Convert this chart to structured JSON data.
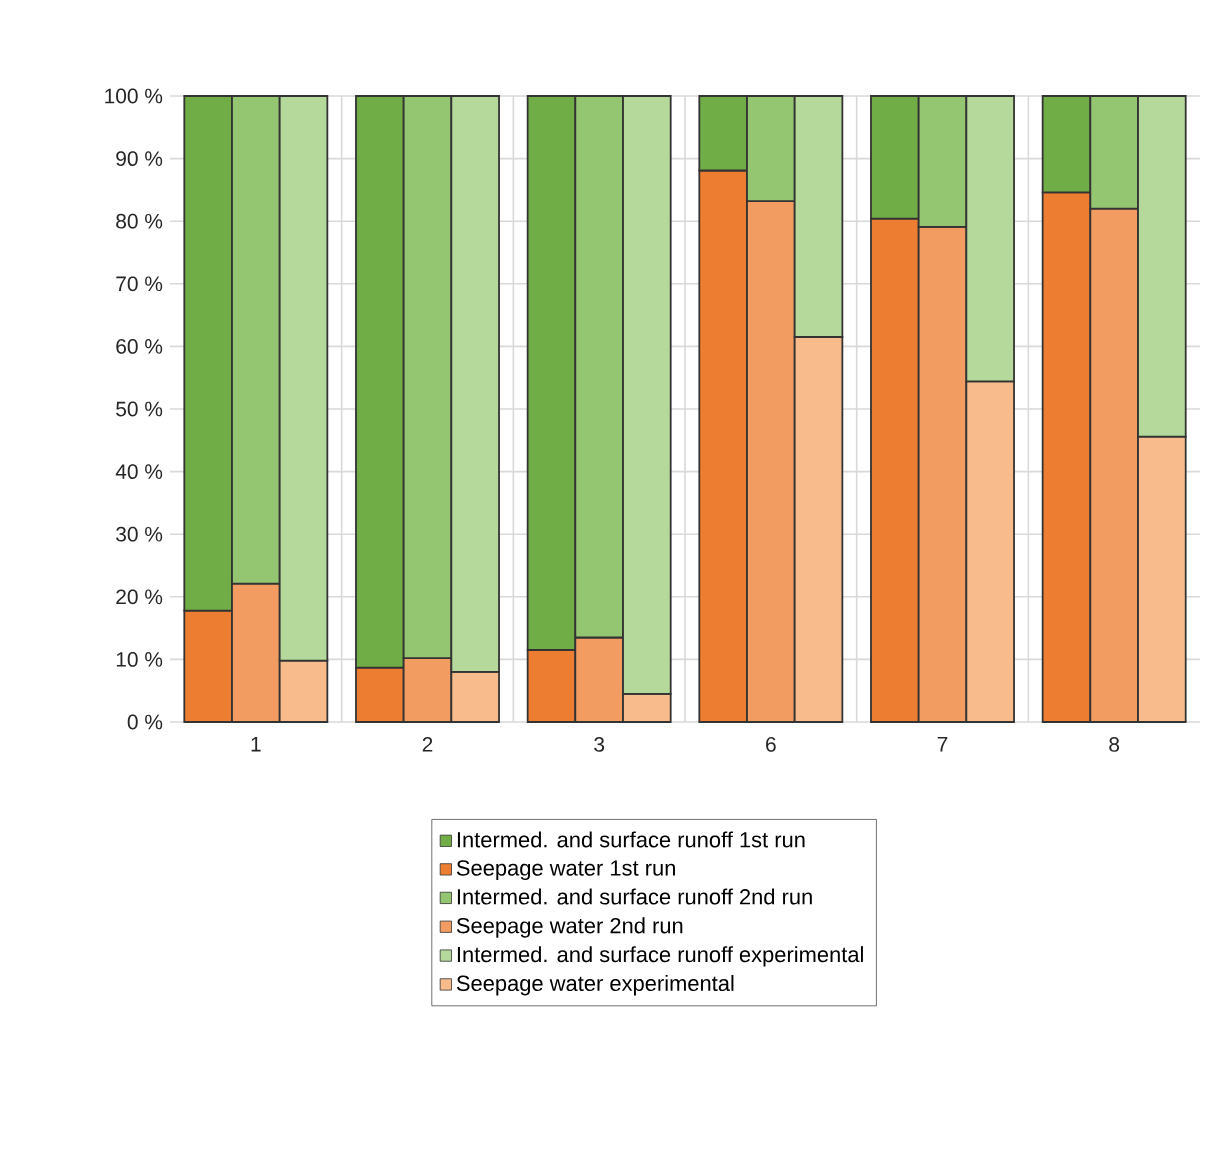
{
  "chart_data": {
    "type": "bar",
    "stacked": true,
    "categories": [
      null,
      "1",
      null,
      null,
      "2",
      null,
      null,
      "3",
      null,
      null,
      "6",
      null,
      null,
      "7",
      null,
      null,
      "8",
      null
    ],
    "series": [
      {
        "name": "Seepage water 1st run",
        "color": "#ed7d31",
        "values": [
          17.8,
          null,
          null,
          8.7,
          null,
          null,
          11.5,
          null,
          null,
          88.1,
          null,
          null,
          80.4,
          null,
          null,
          84.6,
          null,
          null
        ]
      },
      {
        "name": "Intermed. and surface runoff 1st run",
        "color": "#70ad47",
        "values": [
          82.2,
          null,
          null,
          91.3,
          null,
          null,
          88.5,
          null,
          null,
          11.9,
          null,
          null,
          19.6,
          null,
          null,
          15.4,
          null,
          null
        ]
      },
      {
        "name": "Seepage water 2nd run",
        "color": "#f39c62",
        "values": [
          null,
          22.1,
          null,
          null,
          10.2,
          null,
          null,
          13.5,
          null,
          null,
          83.2,
          null,
          null,
          79.1,
          null,
          null,
          82.0,
          null
        ]
      },
      {
        "name": "Intermed. and surface runoff 2nd run",
        "color": "#94c672",
        "values": [
          null,
          77.9,
          null,
          null,
          89.8,
          null,
          null,
          86.5,
          null,
          null,
          16.8,
          null,
          null,
          20.9,
          null,
          null,
          18.0,
          null
        ]
      },
      {
        "name": "Seepage water experimental",
        "color": "#f8bc8c",
        "values": [
          null,
          null,
          9.8,
          null,
          null,
          8.0,
          null,
          null,
          4.5,
          null,
          null,
          61.5,
          null,
          null,
          54.4,
          null,
          null,
          45.6
        ]
      },
      {
        "name": "Intermed. and surface runoff experimental",
        "color": "#b5d99a",
        "values": [
          null,
          null,
          90.2,
          null,
          null,
          92.0,
          null,
          null,
          95.5,
          null,
          null,
          38.5,
          null,
          null,
          45.6,
          null,
          null,
          54.4
        ]
      }
    ],
    "ylim": [
      0,
      100
    ],
    "yticks": [
      {
        "value": 0,
        "label": "0 %"
      },
      {
        "value": 10,
        "label": "10 %"
      },
      {
        "value": 20,
        "label": "20 %"
      },
      {
        "value": 30,
        "label": "30 %"
      },
      {
        "value": 40,
        "label": "40 %"
      },
      {
        "value": 50,
        "label": "50 %"
      },
      {
        "value": 60,
        "label": "60 %"
      },
      {
        "value": 70,
        "label": "70 %"
      },
      {
        "value": 80,
        "label": "80 %"
      },
      {
        "value": 90,
        "label": "90 %"
      },
      {
        "value": 100,
        "label": "100 %"
      }
    ],
    "grid": true,
    "legend": "bottom"
  }
}
